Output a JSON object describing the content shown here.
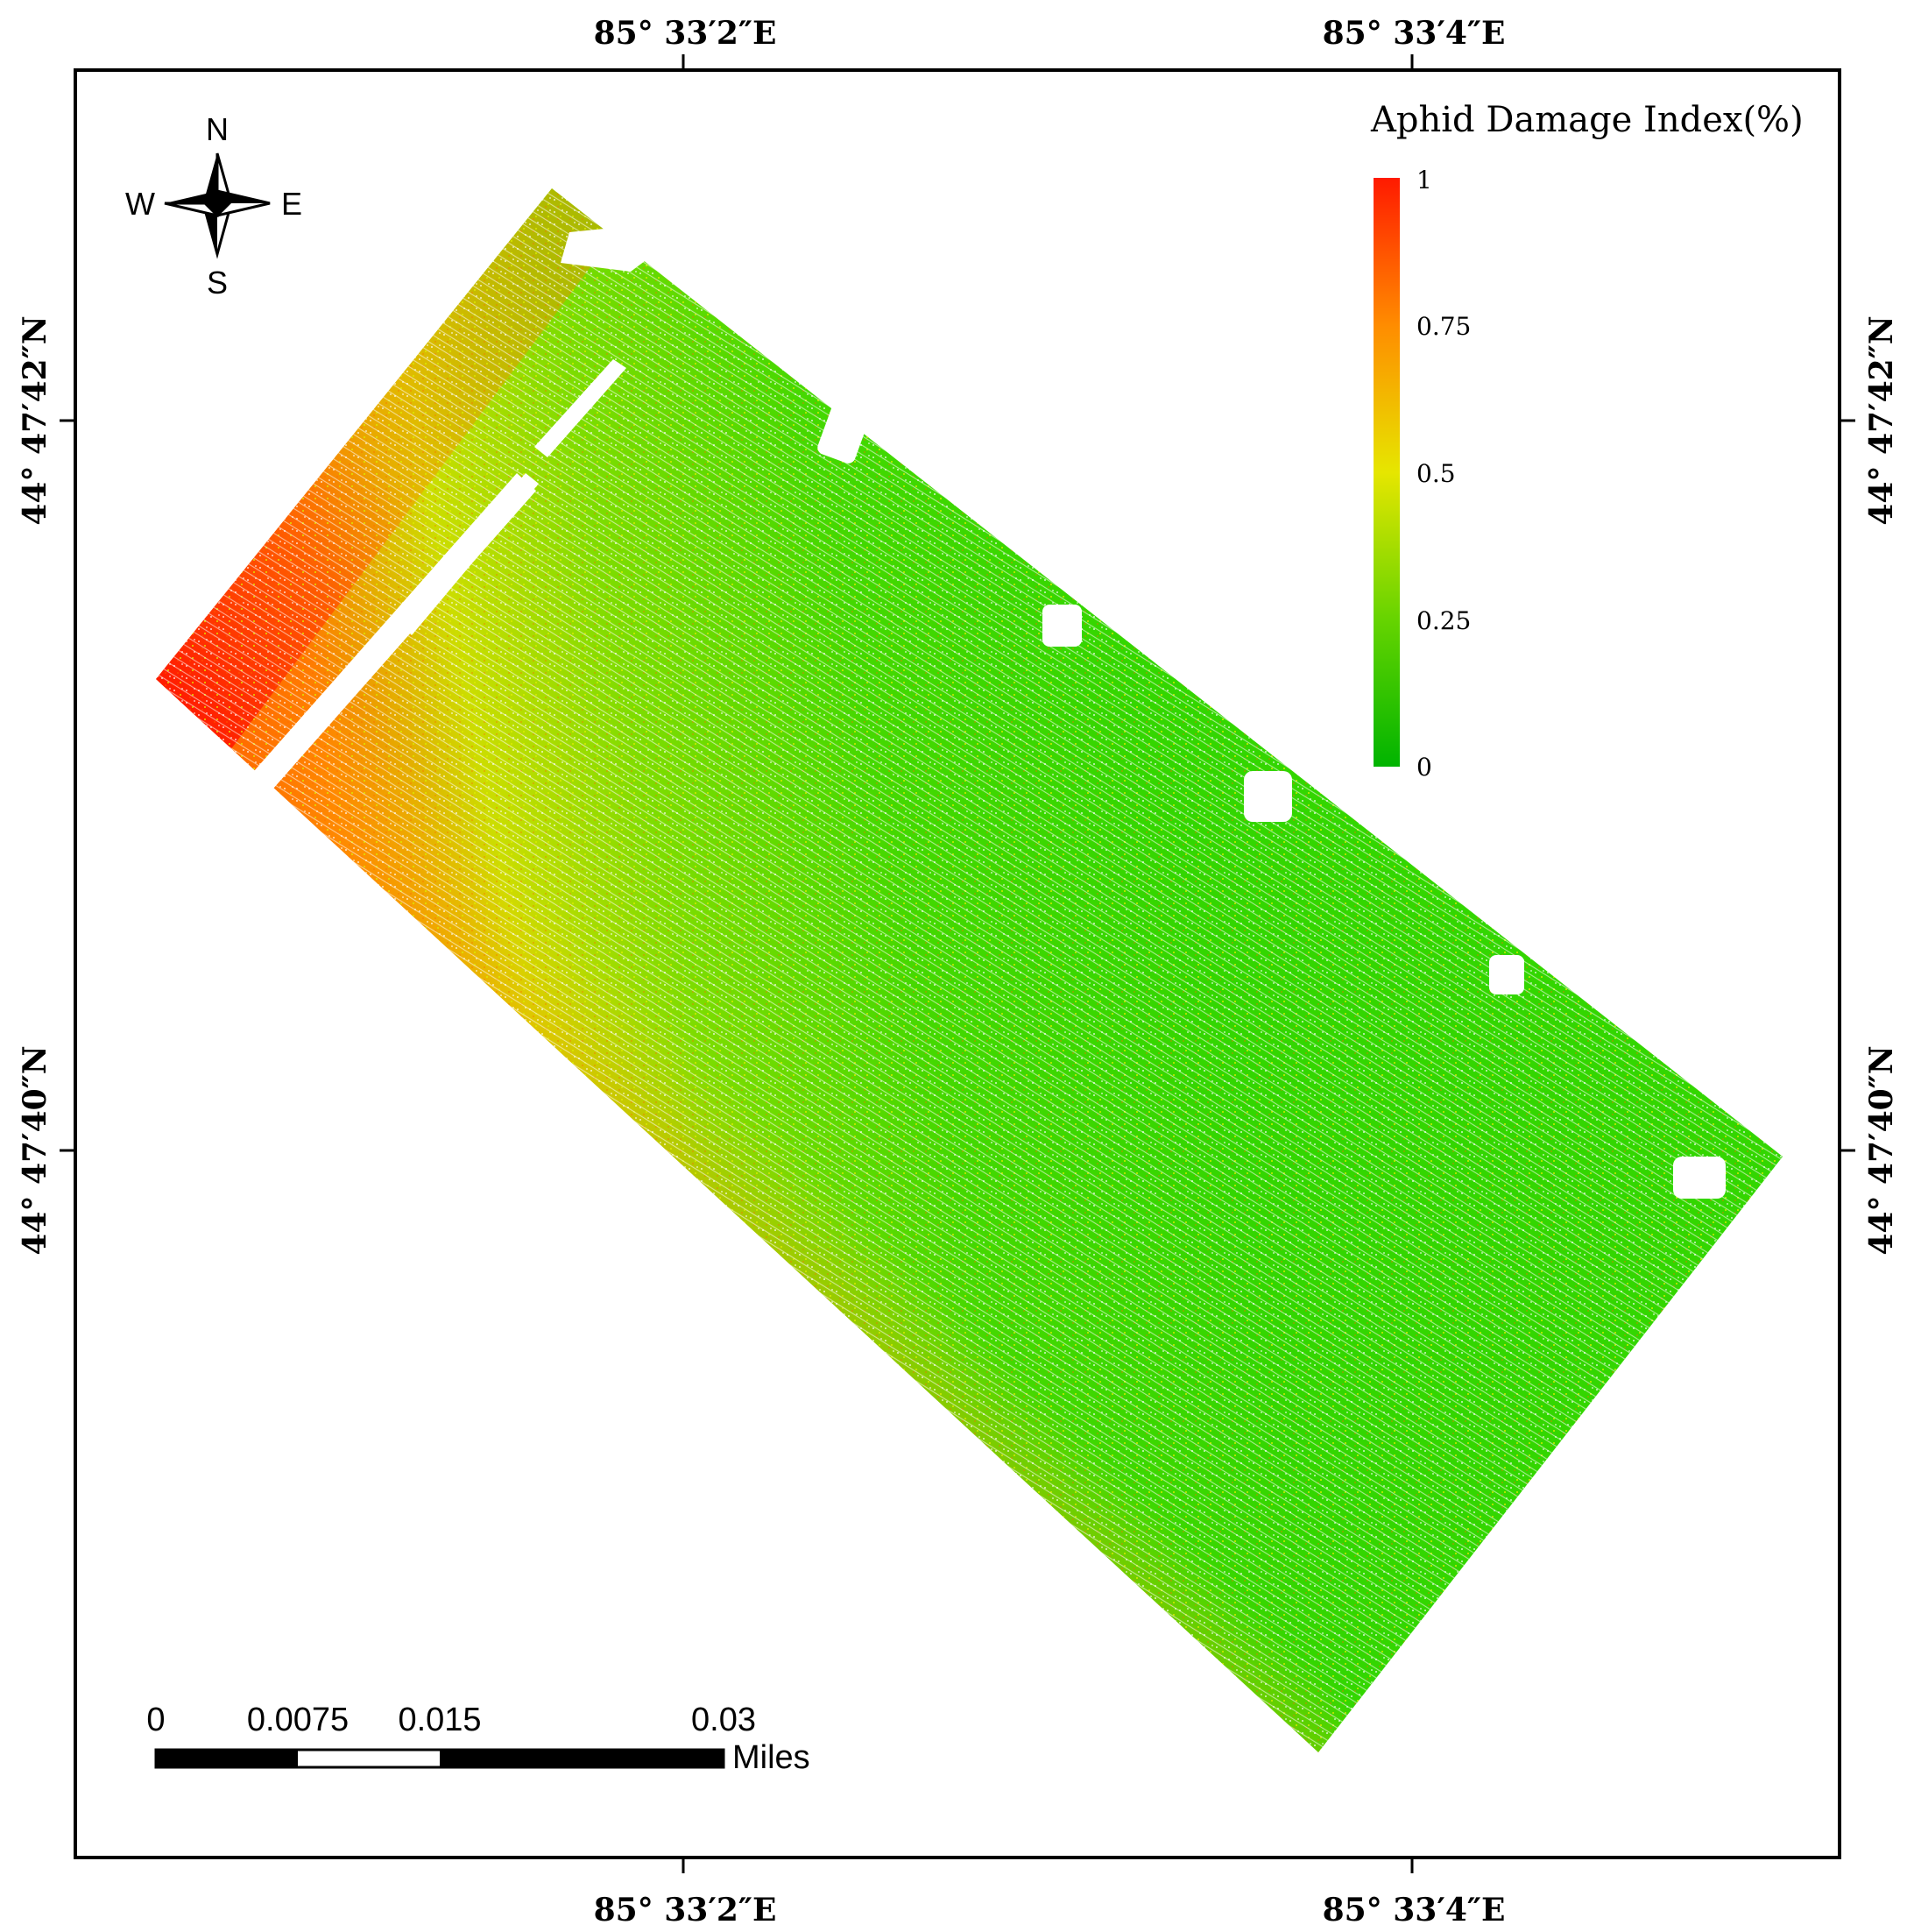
{
  "map": {
    "top_coords": [
      "85° 33′2″E",
      "85° 33′4″E"
    ],
    "bottom_coords": [
      "85° 33′2″E",
      "85° 33′4″E"
    ],
    "left_coords": [
      "44° 47′42″N",
      "44° 47′40″N"
    ],
    "right_coords": [
      "44° 47′42″N",
      "44° 47′40″N"
    ]
  },
  "compass": {
    "north": "N",
    "south": "S",
    "east": "E",
    "west": "W"
  },
  "legend": {
    "title": "Aphid Damage Index(%)",
    "ticks": [
      "1",
      "0.75",
      "0.5",
      "0.25",
      "0"
    ],
    "color_high": "#ff1a00",
    "color_mid": "#e6e600",
    "color_low": "#00b400"
  },
  "scalebar": {
    "labels": [
      "0",
      "0.0075",
      "0.015",
      "0.03"
    ],
    "unit": "Miles"
  }
}
